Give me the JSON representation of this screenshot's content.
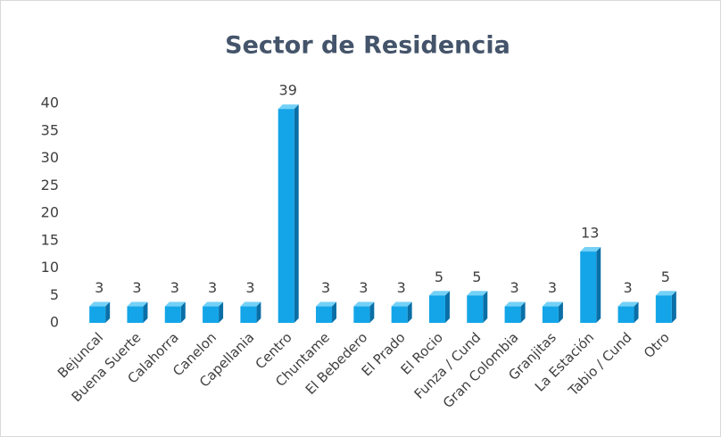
{
  "chart_data": {
    "type": "bar3d",
    "title": "Sector de Residencia",
    "categories": [
      "Bejuncal",
      "Buena Suerte",
      "Calahorra",
      "Canelon",
      "Capellania",
      "Centro",
      "Chuntame",
      "El Bebedero",
      "El Prado",
      "El Rocio",
      "Funza / Cund",
      "Gran Colombia",
      "Granjitas",
      "La Estación",
      "Tabio / Cund",
      "Otro"
    ],
    "values": [
      3,
      3,
      3,
      3,
      3,
      39,
      3,
      3,
      3,
      5,
      5,
      3,
      3,
      13,
      3,
      5
    ],
    "color": "#13a5e8",
    "ylim": [
      0,
      40
    ],
    "yticks": [
      0,
      5,
      10,
      15,
      20,
      25,
      30,
      35,
      40
    ],
    "grid": false
  }
}
